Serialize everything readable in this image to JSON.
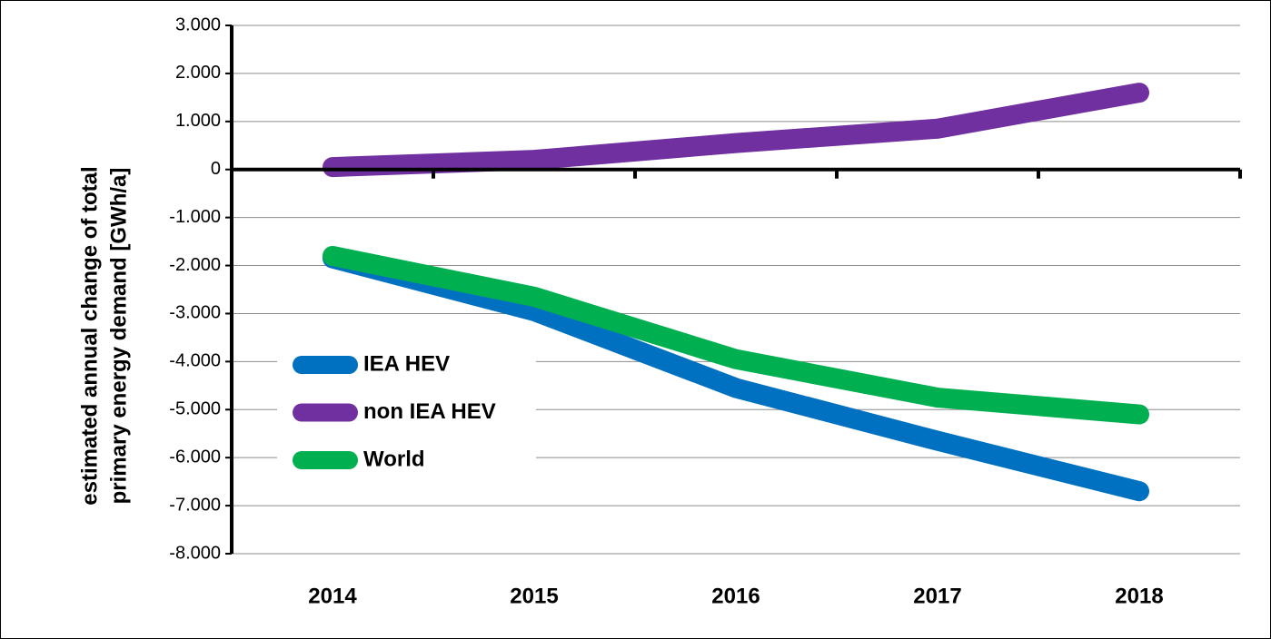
{
  "chart_data": {
    "type": "line",
    "ylabel": [
      "estimated annual change of total",
      "primary energy demand [GWh/a]"
    ],
    "categories": [
      "2014",
      "2015",
      "2016",
      "2017",
      "2018"
    ],
    "series": [
      {
        "name": "IEA HEV",
        "color": "#0070c0",
        "values": [
          -1850,
          -2950,
          -4550,
          -5650,
          -6700
        ]
      },
      {
        "name": "non IEA HEV",
        "color": "#7030a0",
        "values": [
          50,
          200,
          550,
          850,
          1600
        ]
      },
      {
        "name": "World",
        "color": "#00b050",
        "values": [
          -1800,
          -2650,
          -3950,
          -4750,
          -5100
        ]
      }
    ],
    "ylim": [
      -8000,
      3000
    ],
    "yticks": [
      {
        "value": -8000,
        "label": "-8.000"
      },
      {
        "value": -7000,
        "label": "-7.000"
      },
      {
        "value": -6000,
        "label": "-6.000"
      },
      {
        "value": -5000,
        "label": "-5.000"
      },
      {
        "value": -4000,
        "label": "-4.000"
      },
      {
        "value": -3000,
        "label": "-3.000"
      },
      {
        "value": -2000,
        "label": "-2.000"
      },
      {
        "value": -1000,
        "label": "-1.000"
      },
      0,
      {
        "value": 1000,
        "label": "1.000"
      },
      {
        "value": 2000,
        "label": "2.000"
      },
      {
        "value": 3000,
        "label": "3.000"
      }
    ],
    "grid": true,
    "legend": "left"
  }
}
